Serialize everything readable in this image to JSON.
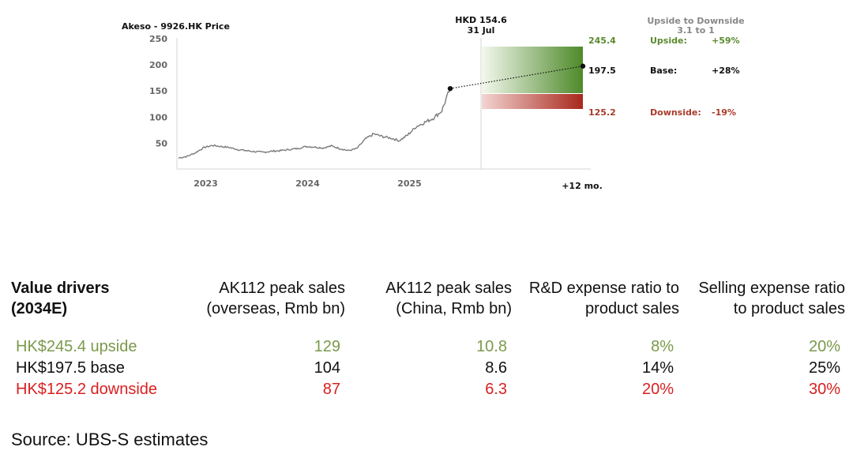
{
  "chart_data": {
    "type": "line",
    "title": "Akeso - 9926.HK Price",
    "x_ticks": [
      "2023",
      "2024",
      "2025"
    ],
    "x_future_label": "+12 mo.",
    "yticks": [
      50,
      100,
      150,
      200,
      250
    ],
    "ylim": [
      10,
      265
    ],
    "series": [
      {
        "name": "9926.HK Price",
        "points": [
          [
            "2022-11",
            22
          ],
          [
            "2022-12",
            25
          ],
          [
            "2023-01",
            32
          ],
          [
            "2023-02",
            42
          ],
          [
            "2023-03",
            46
          ],
          [
            "2023-04",
            44
          ],
          [
            "2023-05",
            42
          ],
          [
            "2023-06",
            38
          ],
          [
            "2023-07",
            36
          ],
          [
            "2023-08",
            34
          ],
          [
            "2023-09",
            33
          ],
          [
            "2023-10",
            35
          ],
          [
            "2023-11",
            36
          ],
          [
            "2023-12",
            38
          ],
          [
            "2024-01",
            40
          ],
          [
            "2024-02",
            44
          ],
          [
            "2024-03",
            43
          ],
          [
            "2024-04",
            41
          ],
          [
            "2024-05",
            45
          ],
          [
            "2024-06",
            40
          ],
          [
            "2024-07",
            36
          ],
          [
            "2024-08",
            40
          ],
          [
            "2024-09",
            58
          ],
          [
            "2024-10",
            68
          ],
          [
            "2024-11",
            63
          ],
          [
            "2024-12",
            60
          ],
          [
            "2025-01",
            55
          ],
          [
            "2025-02",
            66
          ],
          [
            "2025-03",
            82
          ],
          [
            "2025-04",
            90
          ],
          [
            "2025-05",
            98
          ],
          [
            "2025-06",
            112
          ],
          [
            "2025-07",
            154.6
          ]
        ]
      }
    ],
    "current_price": {
      "label": "HKD 154.6",
      "date": "31 Jul",
      "value": 154.6
    },
    "targets": {
      "header": "Upside to Downside",
      "ratio": "3.1 to 1",
      "upside": {
        "value": 245.4,
        "label": "Upside:",
        "pct": "+59%",
        "color": "#5a8a2e"
      },
      "base": {
        "value": 197.5,
        "label": "Base:",
        "pct": "+28%",
        "color": "#111111"
      },
      "downside": {
        "value": 125.2,
        "label": "Downside:",
        "pct": "-19%",
        "color": "#a83a2a"
      }
    }
  },
  "table": {
    "headers": [
      "Value drivers\n(2034E)",
      "AK112 peak sales\n(overseas, Rmb bn)",
      "AK112 peak sales\n(China, Rmb bn)",
      "R&D expense ratio to\nproduct sales",
      "Selling expense ratio\nto product sales"
    ],
    "rows": [
      {
        "label": "HK$245.4 upside",
        "values": [
          "129",
          "10.8",
          "8%",
          "20%"
        ],
        "color": "#7a9a4a"
      },
      {
        "label": "HK$197.5 base",
        "values": [
          "104",
          "8.6",
          "14%",
          "25%"
        ],
        "color": "#111111"
      },
      {
        "label": "HK$125.2 downside",
        "values": [
          "87",
          "6.3",
          "20%",
          "30%"
        ],
        "color": "#d92020"
      }
    ]
  },
  "source": "Source: UBS-S estimates"
}
